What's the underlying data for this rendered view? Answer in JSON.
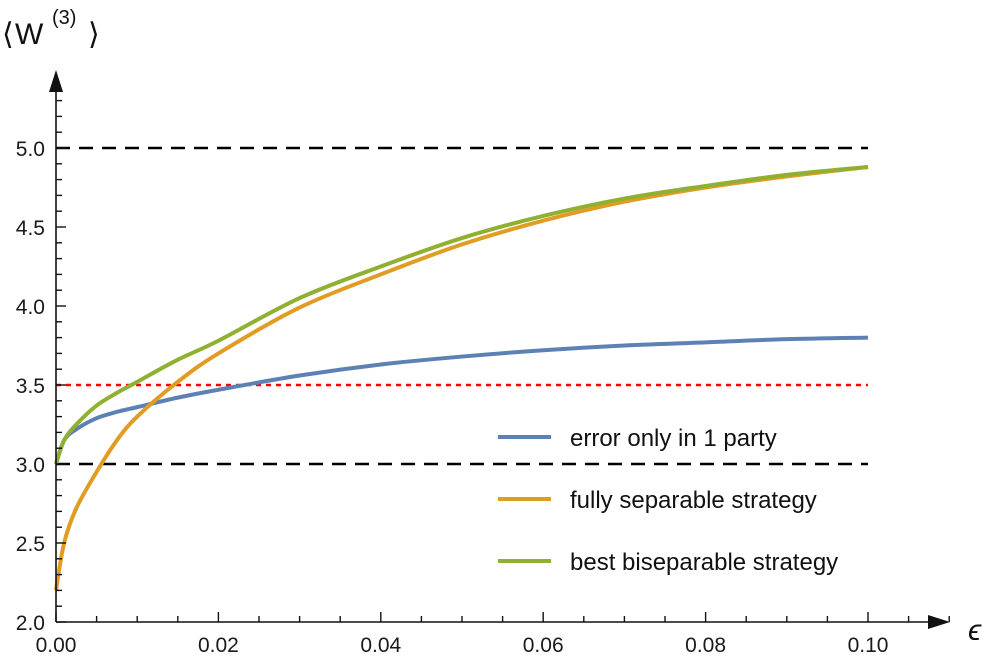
{
  "chart_data": {
    "type": "line",
    "title": "",
    "xlabel": "ϵ",
    "ylabel": "⟨W(3)⟩",
    "ylabel_parts": {
      "open": "⟨",
      "base": "W",
      "sup": "(3)",
      "close": "⟩"
    },
    "xlim": [
      0.0,
      0.11
    ],
    "ylim": [
      2.0,
      5.5
    ],
    "grid": false,
    "legend_position": "lower right (inside)",
    "x_ticks": [
      "0.00",
      "0.02",
      "0.04",
      "0.06",
      "0.08",
      "0.10"
    ],
    "y_ticks": [
      "2.0",
      "2.5",
      "3.0",
      "3.5",
      "4.0",
      "4.5",
      "5.0"
    ],
    "x": [
      0.0,
      0.001,
      0.0025,
      0.005,
      0.0075,
      0.01,
      0.015,
      0.02,
      0.03,
      0.04,
      0.05,
      0.06,
      0.07,
      0.08,
      0.09,
      0.1
    ],
    "series": [
      {
        "name": "error only in 1 party",
        "color": "#5E81B5",
        "values": [
          3.0,
          3.15,
          3.22,
          3.29,
          3.33,
          3.36,
          3.42,
          3.47,
          3.56,
          3.63,
          3.68,
          3.72,
          3.75,
          3.77,
          3.79,
          3.8
        ]
      },
      {
        "name": "fully separable strategy",
        "color": "#E19C24",
        "values": [
          2.2,
          2.5,
          2.72,
          2.95,
          3.15,
          3.3,
          3.52,
          3.7,
          3.99,
          4.2,
          4.39,
          4.54,
          4.66,
          4.75,
          4.82,
          4.88
        ]
      },
      {
        "name": "best biseparable strategy",
        "color": "#8FB032",
        "values": [
          3.0,
          3.15,
          3.25,
          3.37,
          3.45,
          3.52,
          3.66,
          3.78,
          4.05,
          4.25,
          4.43,
          4.57,
          4.68,
          4.76,
          4.83,
          4.88
        ]
      }
    ],
    "reference_lines": [
      {
        "y": 5.0,
        "style": "dashed",
        "color": "#000000",
        "x_range": [
          0.0,
          0.1
        ]
      },
      {
        "y": 3.5,
        "style": "dotted",
        "color": "#FF0000",
        "x_range": [
          0.0,
          0.1
        ]
      },
      {
        "y": 3.0,
        "style": "dashed",
        "color": "#000000",
        "x_range": [
          0.0,
          0.1
        ]
      }
    ]
  },
  "legend": {
    "items": [
      {
        "label": "error only in 1 party",
        "color": "#5E81B5"
      },
      {
        "label": "fully separable strategy",
        "color": "#E19C24"
      },
      {
        "label": "best biseparable strategy",
        "color": "#8FB032"
      }
    ]
  }
}
